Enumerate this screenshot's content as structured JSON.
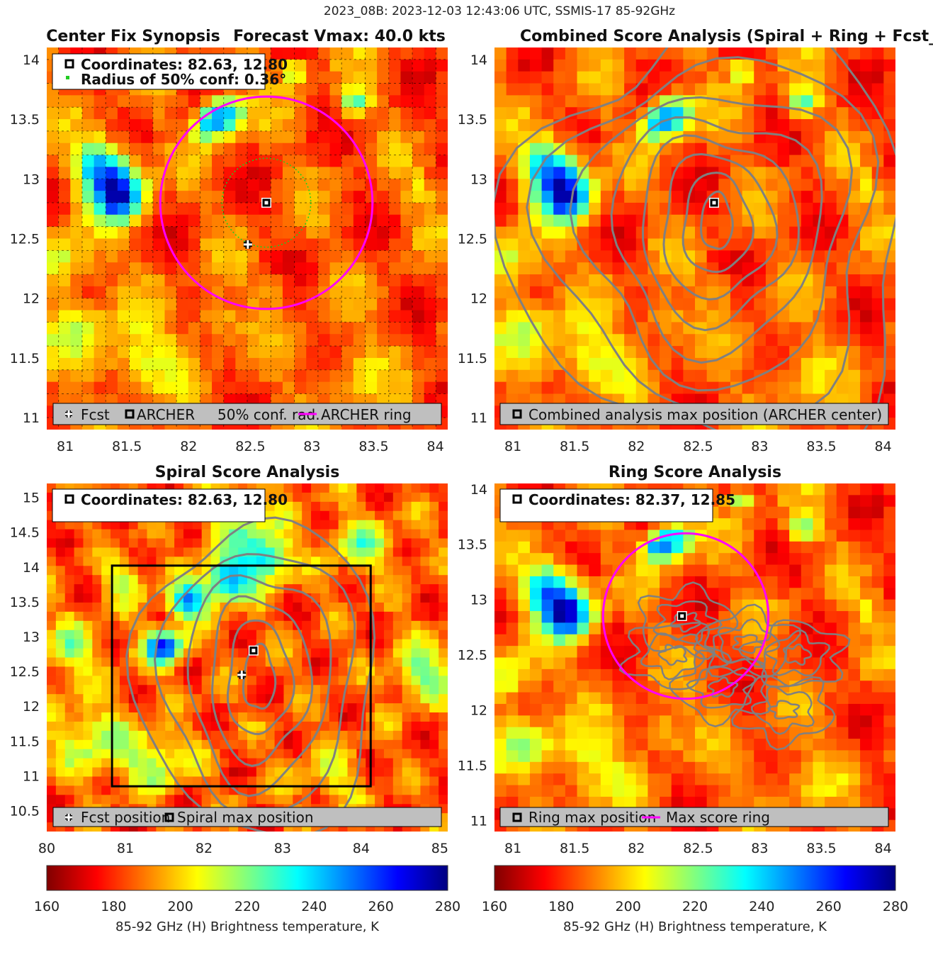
{
  "figure_title": "2023_08B: 2023-12-03 12:43:06 UTC, SSMIS-17 85-92GHz",
  "colors": {
    "ring": "#ff00ff",
    "contour": "#808080",
    "legend_bg": "#bfbfbf",
    "box": "#000000",
    "conf_circle": "#22cc22"
  },
  "chart_data": [
    {
      "type": "heatmap",
      "title": "Center Fix Synopsis",
      "title2": "Forecast Vmax: 40.0 kts",
      "xlim": [
        80.85,
        84.1
      ],
      "ylim": [
        10.9,
        14.1
      ],
      "xticks": [
        81,
        81.5,
        82,
        82.5,
        83,
        83.5,
        84
      ],
      "yticks": [
        11,
        11.5,
        12,
        12.5,
        13,
        13.5,
        14
      ],
      "xlabel": "",
      "ylabel": "",
      "grid": true,
      "info_lines": [
        "Coordinates: 82.63, 12.80",
        "Radius of 50% conf: 0.36°"
      ],
      "legend": [
        "Fcst",
        "ARCHER",
        "50% conf. rad.",
        "ARCHER ring"
      ],
      "archer_center": [
        82.63,
        12.8
      ],
      "fcst_position": [
        82.48,
        12.45
      ],
      "conf_radius_deg": 0.36,
      "ring_center": [
        82.63,
        12.8
      ],
      "ring_radius_deg": 0.86,
      "cold_features": [
        {
          "x": 81.45,
          "y": 12.85,
          "r": 0.2
        },
        {
          "x": 81.3,
          "y": 13.1,
          "r": 0.2
        },
        {
          "x": 82.3,
          "y": 13.55,
          "r": 0.15
        },
        {
          "x": 82.15,
          "y": 13.45,
          "r": 0.12
        },
        {
          "x": 83.35,
          "y": 13.65,
          "r": 0.12
        },
        {
          "x": 82.85,
          "y": 13.9,
          "r": 0.1
        }
      ]
    },
    {
      "type": "heatmap",
      "title": "Combined Score Analysis (Spiral + Ring + Fcst_Pe",
      "xlim": [
        80.85,
        84.1
      ],
      "ylim": [
        10.9,
        14.1
      ],
      "xticks": [
        81,
        81.5,
        82,
        82.5,
        83,
        83.5,
        84
      ],
      "yticks": [
        11,
        11.5,
        12,
        12.5,
        13,
        13.5,
        14
      ],
      "xlabel": "",
      "ylabel": "",
      "grid": false,
      "legend": [
        "Combined analysis max position (ARCHER center)"
      ],
      "max_position": [
        82.63,
        12.8
      ],
      "contour_center": [
        82.65,
        12.7
      ]
    },
    {
      "type": "heatmap",
      "title": "Spiral Score Analysis",
      "xlim": [
        80,
        85.1
      ],
      "ylim": [
        10.2,
        15.2
      ],
      "xticks": [
        80,
        81,
        82,
        83,
        84,
        85
      ],
      "yticks": [
        10.5,
        11,
        11.5,
        12,
        12.5,
        13,
        13.5,
        14,
        14.5,
        15
      ],
      "xlabel": "",
      "ylabel": "",
      "grid": false,
      "info_lines": [
        "Coordinates: 82.63, 12.80"
      ],
      "legend": [
        "Fcst position",
        "Spiral max position"
      ],
      "max_position": [
        82.63,
        12.8
      ],
      "fcst_position": [
        82.48,
        12.45
      ],
      "search_box": {
        "x0": 80.83,
        "x1": 84.12,
        "y0": 10.85,
        "y1": 14.02
      }
    },
    {
      "type": "heatmap",
      "title": "Ring Score Analysis",
      "xlim": [
        80.85,
        84.1
      ],
      "ylim": [
        10.9,
        14.05
      ],
      "xticks": [
        81,
        81.5,
        82,
        82.5,
        83,
        83.5,
        84
      ],
      "yticks": [
        11,
        11.5,
        12,
        12.5,
        13,
        13.5,
        14
      ],
      "xlabel": "",
      "ylabel": "",
      "grid": false,
      "info_lines": [
        "Coordinates: 82.37, 12.85"
      ],
      "legend": [
        "Ring max position",
        "Max score ring"
      ],
      "max_position": [
        82.37,
        12.85
      ],
      "ring_center": [
        82.4,
        12.85
      ],
      "ring_radius_deg": 0.67
    }
  ],
  "colorbars": [
    {
      "ticks": [
        160,
        180,
        200,
        220,
        240,
        260,
        280
      ],
      "label": "85-92 GHz (H) Brightness temperature, K"
    },
    {
      "ticks": [
        160,
        180,
        200,
        220,
        240,
        260,
        280
      ],
      "label": "85-92 GHz (H) Brightness temperature, K"
    }
  ]
}
